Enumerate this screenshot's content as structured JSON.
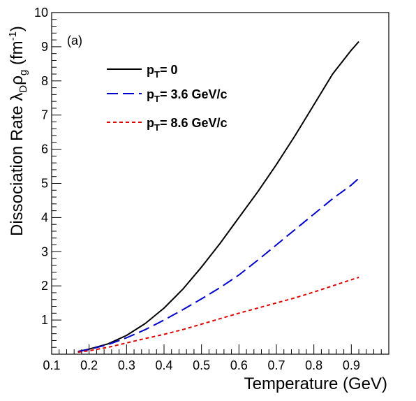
{
  "chart_data": {
    "type": "line",
    "panel_label": "(a)",
    "xlabel": "Temperature (GeV)",
    "ylabel": {
      "base": "Dissociation Rate λ",
      "sub1": "D",
      "mid": "ρ",
      "sub2": "g",
      "unit_open": " (fm",
      "unit_sup": "-1",
      "unit_close": ")"
    },
    "xlim": [
      0.1,
      1.0
    ],
    "ylim": [
      0,
      10
    ],
    "x_ticks": [
      {
        "value": 0.1,
        "label": "0.1"
      },
      {
        "value": 0.2,
        "label": "0.2"
      },
      {
        "value": 0.3,
        "label": "0.3"
      },
      {
        "value": 0.4,
        "label": "0.4"
      },
      {
        "value": 0.5,
        "label": "0.5"
      },
      {
        "value": 0.6,
        "label": "0.6"
      },
      {
        "value": 0.7,
        "label": "0.7"
      },
      {
        "value": 0.8,
        "label": "0.8"
      },
      {
        "value": 0.9,
        "label": "0.9"
      }
    ],
    "y_ticks": [
      {
        "value": 1,
        "label": "1"
      },
      {
        "value": 2,
        "label": "2"
      },
      {
        "value": 3,
        "label": "3"
      },
      {
        "value": 4,
        "label": "4"
      },
      {
        "value": 5,
        "label": "5"
      },
      {
        "value": 6,
        "label": "6"
      },
      {
        "value": 7,
        "label": "7"
      },
      {
        "value": 8,
        "label": "8"
      },
      {
        "value": 9,
        "label": "9"
      },
      {
        "value": 10,
        "label": "10"
      }
    ],
    "legend": "top-left",
    "series": [
      {
        "label_main": "p",
        "label_sub": "T",
        "label_rest": "= 0",
        "color": "#000000",
        "dash": "solid",
        "x": [
          0.17,
          0.2,
          0.25,
          0.3,
          0.35,
          0.4,
          0.45,
          0.5,
          0.55,
          0.6,
          0.65,
          0.7,
          0.75,
          0.8,
          0.85,
          0.9,
          0.92
        ],
        "y": [
          0.08,
          0.15,
          0.3,
          0.55,
          0.9,
          1.35,
          1.9,
          2.55,
          3.25,
          4.0,
          4.75,
          5.55,
          6.4,
          7.3,
          8.2,
          8.9,
          9.15
        ]
      },
      {
        "label_main": "p",
        "label_sub": "T",
        "label_rest": "= 3.6 GeV/c",
        "color": "#0000cc",
        "dash": "long",
        "x": [
          0.17,
          0.2,
          0.25,
          0.3,
          0.35,
          0.4,
          0.45,
          0.5,
          0.55,
          0.6,
          0.65,
          0.7,
          0.75,
          0.8,
          0.85,
          0.9,
          0.92
        ],
        "y": [
          0.08,
          0.14,
          0.28,
          0.48,
          0.72,
          1.0,
          1.3,
          1.62,
          1.95,
          2.32,
          2.75,
          3.2,
          3.65,
          4.1,
          4.55,
          4.95,
          5.15
        ]
      },
      {
        "label_main": "p",
        "label_sub": "T",
        "label_rest": "= 8.6 GeV/c",
        "color": "#dd0000",
        "dash": "short",
        "x": [
          0.17,
          0.2,
          0.25,
          0.3,
          0.35,
          0.4,
          0.45,
          0.5,
          0.55,
          0.6,
          0.65,
          0.7,
          0.75,
          0.8,
          0.85,
          0.9,
          0.92
        ],
        "y": [
          0.06,
          0.1,
          0.2,
          0.33,
          0.46,
          0.58,
          0.72,
          0.88,
          1.04,
          1.2,
          1.35,
          1.5,
          1.65,
          1.82,
          2.0,
          2.18,
          2.25
        ]
      }
    ]
  }
}
